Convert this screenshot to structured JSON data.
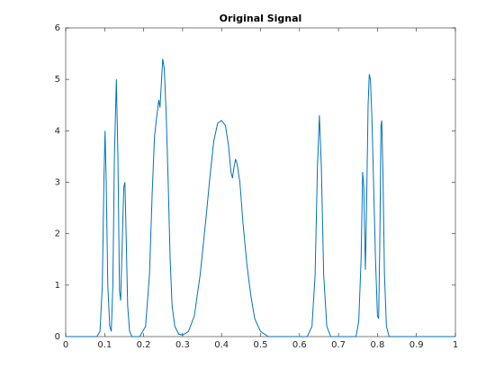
{
  "chart_data": {
    "type": "line",
    "title": "Original Signal",
    "x": [
      0,
      0.08,
      0.088,
      0.094,
      0.098,
      0.101,
      0.104,
      0.108,
      0.113,
      0.117,
      0.121,
      0.125,
      0.13,
      0.134,
      0.138,
      0.141,
      0.145,
      0.149,
      0.152,
      0.155,
      0.159,
      0.164,
      0.17,
      0.19,
      0.205,
      0.215,
      0.222,
      0.228,
      0.234,
      0.239,
      0.242,
      0.246,
      0.249,
      0.253,
      0.258,
      0.263,
      0.268,
      0.273,
      0.28,
      0.29,
      0.3,
      0.315,
      0.33,
      0.345,
      0.36,
      0.37,
      0.38,
      0.39,
      0.4,
      0.41,
      0.418,
      0.424,
      0.428,
      0.432,
      0.436,
      0.44,
      0.447,
      0.455,
      0.465,
      0.475,
      0.485,
      0.5,
      0.52,
      0.62,
      0.632,
      0.64,
      0.646,
      0.651,
      0.656,
      0.662,
      0.67,
      0.68,
      0.745,
      0.752,
      0.758,
      0.762,
      0.765,
      0.769,
      0.772,
      0.776,
      0.779,
      0.782,
      0.786,
      0.79,
      0.795,
      0.8,
      0.803,
      0.806,
      0.809,
      0.811,
      0.814,
      0.818,
      0.823,
      0.83,
      1
    ],
    "series": [
      {
        "color": "#0072bd",
        "values": [
          0,
          0,
          0.1,
          1,
          3,
          4.0,
          3,
          1,
          0.2,
          0.1,
          1,
          3.5,
          5.0,
          3.5,
          0.9,
          0.7,
          1.8,
          2.9,
          3.0,
          2,
          0.6,
          0.1,
          0,
          0,
          0.2,
          1.2,
          2.8,
          3.9,
          4.3,
          4.6,
          4.45,
          5.0,
          5.4,
          5.2,
          4.3,
          3,
          1.5,
          0.6,
          0.2,
          0.05,
          0.03,
          0.1,
          0.4,
          1.2,
          2.3,
          3.1,
          3.8,
          4.15,
          4.2,
          4.1,
          3.7,
          3.2,
          3.08,
          3.3,
          3.45,
          3.35,
          3.0,
          2.2,
          1.4,
          0.8,
          0.35,
          0.1,
          0,
          0,
          0.2,
          1.2,
          3.3,
          4.3,
          3.3,
          1.2,
          0.2,
          0,
          0,
          0.3,
          1.5,
          3.2,
          2.9,
          1.3,
          2.5,
          4.5,
          5.1,
          5.0,
          4.2,
          3.0,
          1.5,
          0.4,
          0.35,
          1.8,
          4.1,
          4.2,
          3.2,
          1.2,
          0.2,
          0,
          0
        ]
      }
    ],
    "xlim": [
      0,
      1
    ],
    "xticks": [
      0,
      0.1,
      0.2,
      0.3,
      0.4,
      0.5,
      0.6,
      0.7,
      0.8,
      0.9,
      1
    ],
    "ylim": [
      0,
      6
    ],
    "yticks": [
      0,
      1,
      2,
      3,
      4,
      5,
      6
    ]
  }
}
